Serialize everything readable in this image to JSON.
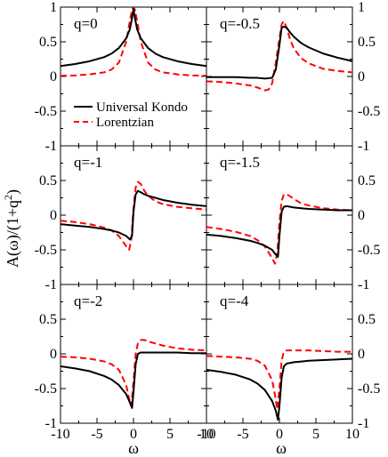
{
  "chart_data": {
    "type": "line",
    "grid": false,
    "legend": {
      "position": "top-left panel, lower-left",
      "entries": [
        {
          "name": "Universal Kondo",
          "color": "#000000",
          "style": "solid"
        },
        {
          "name": "Lorentzian",
          "color": "#ff0000",
          "style": "dashed"
        }
      ]
    },
    "xlabel_left": "ω",
    "xlabel_right": "ω",
    "ylabel_main": "A(ω)/(1+q",
    "ylabel_sup": "2",
    "ylabel_tail": ")",
    "xlim": [
      -10,
      10
    ],
    "ylim": [
      -1,
      1
    ],
    "xticks": [
      "-10",
      "-5",
      "0",
      "5",
      "10"
    ],
    "xticks_right": [
      "-10",
      "-5",
      "0",
      "5",
      "10"
    ],
    "yticks": [
      "1",
      "0.5",
      "0",
      "-0.5",
      "-1"
    ],
    "panels": [
      {
        "label": "q=0",
        "series": [
          {
            "name": "Universal Kondo",
            "color": "#000000",
            "x": [
              -10,
              -8,
              -6,
              -4,
              -3,
              -2,
              -1,
              -0.5,
              -0.2,
              0,
              0.2,
              0.5,
              1,
              2,
              3,
              4,
              6,
              8,
              10
            ],
            "y": [
              0.15,
              0.18,
              0.22,
              0.28,
              0.33,
              0.41,
              0.55,
              0.68,
              0.84,
              0.98,
              0.84,
              0.68,
              0.55,
              0.41,
              0.33,
              0.28,
              0.22,
              0.18,
              0.15
            ]
          },
          {
            "name": "Lorentzian",
            "color": "#ff0000",
            "x": [
              -10,
              -8,
              -6,
              -4,
              -3,
              -2,
              -1,
              -0.5,
              -0.2,
              0,
              0.2,
              0.5,
              1,
              2,
              3,
              4,
              6,
              8,
              10
            ],
            "y": [
              0.01,
              0.015,
              0.03,
              0.06,
              0.1,
              0.2,
              0.5,
              0.8,
              0.96,
              1.0,
              0.96,
              0.8,
              0.5,
              0.2,
              0.1,
              0.06,
              0.03,
              0.015,
              0.01
            ]
          }
        ]
      },
      {
        "label": "q=-0.5",
        "series": [
          {
            "name": "Universal Kondo",
            "color": "#000000",
            "x": [
              -10,
              -8,
              -6,
              -4,
              -3,
              -2,
              -1,
              -0.5,
              0,
              0.3,
              0.6,
              1,
              1.5,
              2,
              3,
              4,
              6,
              8,
              10
            ],
            "y": [
              -0.01,
              -0.01,
              -0.01,
              -0.02,
              -0.02,
              -0.03,
              -0.02,
              0.1,
              0.45,
              0.7,
              0.72,
              0.7,
              0.63,
              0.57,
              0.48,
              0.42,
              0.33,
              0.27,
              0.22
            ]
          },
          {
            "name": "Lorentzian",
            "color": "#ff0000",
            "x": [
              -10,
              -8,
              -6,
              -4,
              -3,
              -2,
              -1.5,
              -1,
              -0.5,
              0,
              0.3,
              0.6,
              1,
              1.5,
              2,
              3,
              4,
              6,
              8,
              10
            ],
            "y": [
              -0.07,
              -0.08,
              -0.1,
              -0.13,
              -0.16,
              -0.2,
              -0.19,
              -0.1,
              0.2,
              0.55,
              0.75,
              0.8,
              0.7,
              0.52,
              0.4,
              0.26,
              0.19,
              0.11,
              0.08,
              0.06
            ]
          }
        ]
      },
      {
        "label": "q=-1",
        "series": [
          {
            "name": "Universal Kondo",
            "color": "#000000",
            "x": [
              -10,
              -8,
              -6,
              -4,
              -3,
              -2,
              -1,
              -0.5,
              -0.2,
              0,
              0.3,
              0.6,
              1,
              1.5,
              2,
              3,
              4,
              6,
              8,
              10
            ],
            "y": [
              -0.13,
              -0.15,
              -0.17,
              -0.2,
              -0.22,
              -0.25,
              -0.3,
              -0.35,
              -0.3,
              0.05,
              0.3,
              0.35,
              0.33,
              0.3,
              0.28,
              0.25,
              0.22,
              0.18,
              0.15,
              0.13
            ]
          },
          {
            "name": "Lorentzian",
            "color": "#ff0000",
            "x": [
              -10,
              -8,
              -6,
              -4,
              -3,
              -2,
              -1,
              -0.6,
              -0.3,
              0,
              0.3,
              0.6,
              1,
              1.5,
              2,
              3,
              4,
              6,
              8,
              10
            ],
            "y": [
              -0.08,
              -0.1,
              -0.13,
              -0.18,
              -0.22,
              -0.3,
              -0.45,
              -0.5,
              -0.35,
              0.1,
              0.4,
              0.48,
              0.45,
              0.35,
              0.28,
              0.2,
              0.16,
              0.12,
              0.1,
              0.08
            ]
          }
        ]
      },
      {
        "label": "q=-1.5",
        "series": [
          {
            "name": "Universal Kondo",
            "color": "#000000",
            "x": [
              -10,
              -8,
              -6,
              -4,
              -3,
              -2,
              -1,
              -0.5,
              -0.2,
              0,
              0.3,
              0.6,
              1,
              1.5,
              2,
              3,
              4,
              6,
              8,
              10
            ],
            "y": [
              -0.28,
              -0.3,
              -0.33,
              -0.37,
              -0.4,
              -0.44,
              -0.5,
              -0.57,
              -0.6,
              -0.3,
              0.05,
              0.12,
              0.13,
              0.12,
              0.11,
              0.1,
              0.09,
              0.08,
              0.07,
              0.07
            ]
          },
          {
            "name": "Lorentzian",
            "color": "#ff0000",
            "x": [
              -10,
              -8,
              -6,
              -4,
              -3,
              -2,
              -1,
              -0.6,
              -0.3,
              0,
              0.3,
              0.6,
              1,
              1.5,
              2,
              3,
              4,
              6,
              8,
              10
            ],
            "y": [
              -0.17,
              -0.2,
              -0.24,
              -0.3,
              -0.36,
              -0.45,
              -0.62,
              -0.7,
              -0.55,
              -0.1,
              0.2,
              0.3,
              0.3,
              0.27,
              0.23,
              0.17,
              0.14,
              0.1,
              0.08,
              0.07
            ]
          }
        ]
      },
      {
        "label": "q=-2",
        "series": [
          {
            "name": "Universal Kondo",
            "color": "#000000",
            "x": [
              -10,
              -8,
              -6,
              -4,
              -3,
              -2,
              -1,
              -0.5,
              -0.2,
              0,
              0.3,
              0.6,
              1,
              1.5,
              2,
              3,
              4,
              6,
              8,
              10
            ],
            "y": [
              -0.18,
              -0.21,
              -0.25,
              -0.32,
              -0.37,
              -0.45,
              -0.58,
              -0.7,
              -0.78,
              -0.55,
              -0.15,
              0.0,
              0.02,
              0.02,
              0.02,
              0.02,
              0.02,
              0.02,
              0.01,
              0.01
            ]
          },
          {
            "name": "Lorentzian",
            "color": "#ff0000",
            "x": [
              -10,
              -8,
              -6,
              -4,
              -3,
              -2,
              -1,
              -0.6,
              -0.3,
              0,
              0.3,
              0.6,
              1,
              1.5,
              2,
              3,
              4,
              6,
              8,
              10
            ],
            "y": [
              -0.04,
              -0.05,
              -0.07,
              -0.11,
              -0.15,
              -0.23,
              -0.45,
              -0.65,
              -0.75,
              -0.4,
              0.0,
              0.15,
              0.2,
              0.2,
              0.18,
              0.15,
              0.12,
              0.08,
              0.06,
              0.05
            ]
          }
        ]
      },
      {
        "label": "q=-4",
        "series": [
          {
            "name": "Universal Kondo",
            "color": "#000000",
            "x": [
              -10,
              -8,
              -6,
              -4,
              -3,
              -2,
              -1,
              -0.5,
              -0.2,
              0,
              0.3,
              0.6,
              1,
              1.5,
              2,
              3,
              4,
              6,
              8,
              10
            ],
            "y": [
              -0.23,
              -0.26,
              -0.3,
              -0.37,
              -0.43,
              -0.52,
              -0.68,
              -0.82,
              -0.95,
              -0.75,
              -0.35,
              -0.18,
              -0.14,
              -0.13,
              -0.12,
              -0.11,
              -0.1,
              -0.09,
              -0.08,
              -0.07
            ]
          },
          {
            "name": "Lorentzian",
            "color": "#ff0000",
            "x": [
              -10,
              -8,
              -6,
              -4,
              -3,
              -2,
              -1,
              -0.6,
              -0.3,
              0,
              0.3,
              0.6,
              1,
              1.5,
              2,
              3,
              4,
              6,
              8,
              10
            ],
            "y": [
              -0.03,
              -0.04,
              -0.05,
              -0.07,
              -0.1,
              -0.17,
              -0.38,
              -0.6,
              -0.8,
              -0.5,
              -0.1,
              0.03,
              0.05,
              0.05,
              0.05,
              0.05,
              0.05,
              0.04,
              0.03,
              0.03
            ]
          }
        ]
      }
    ]
  }
}
